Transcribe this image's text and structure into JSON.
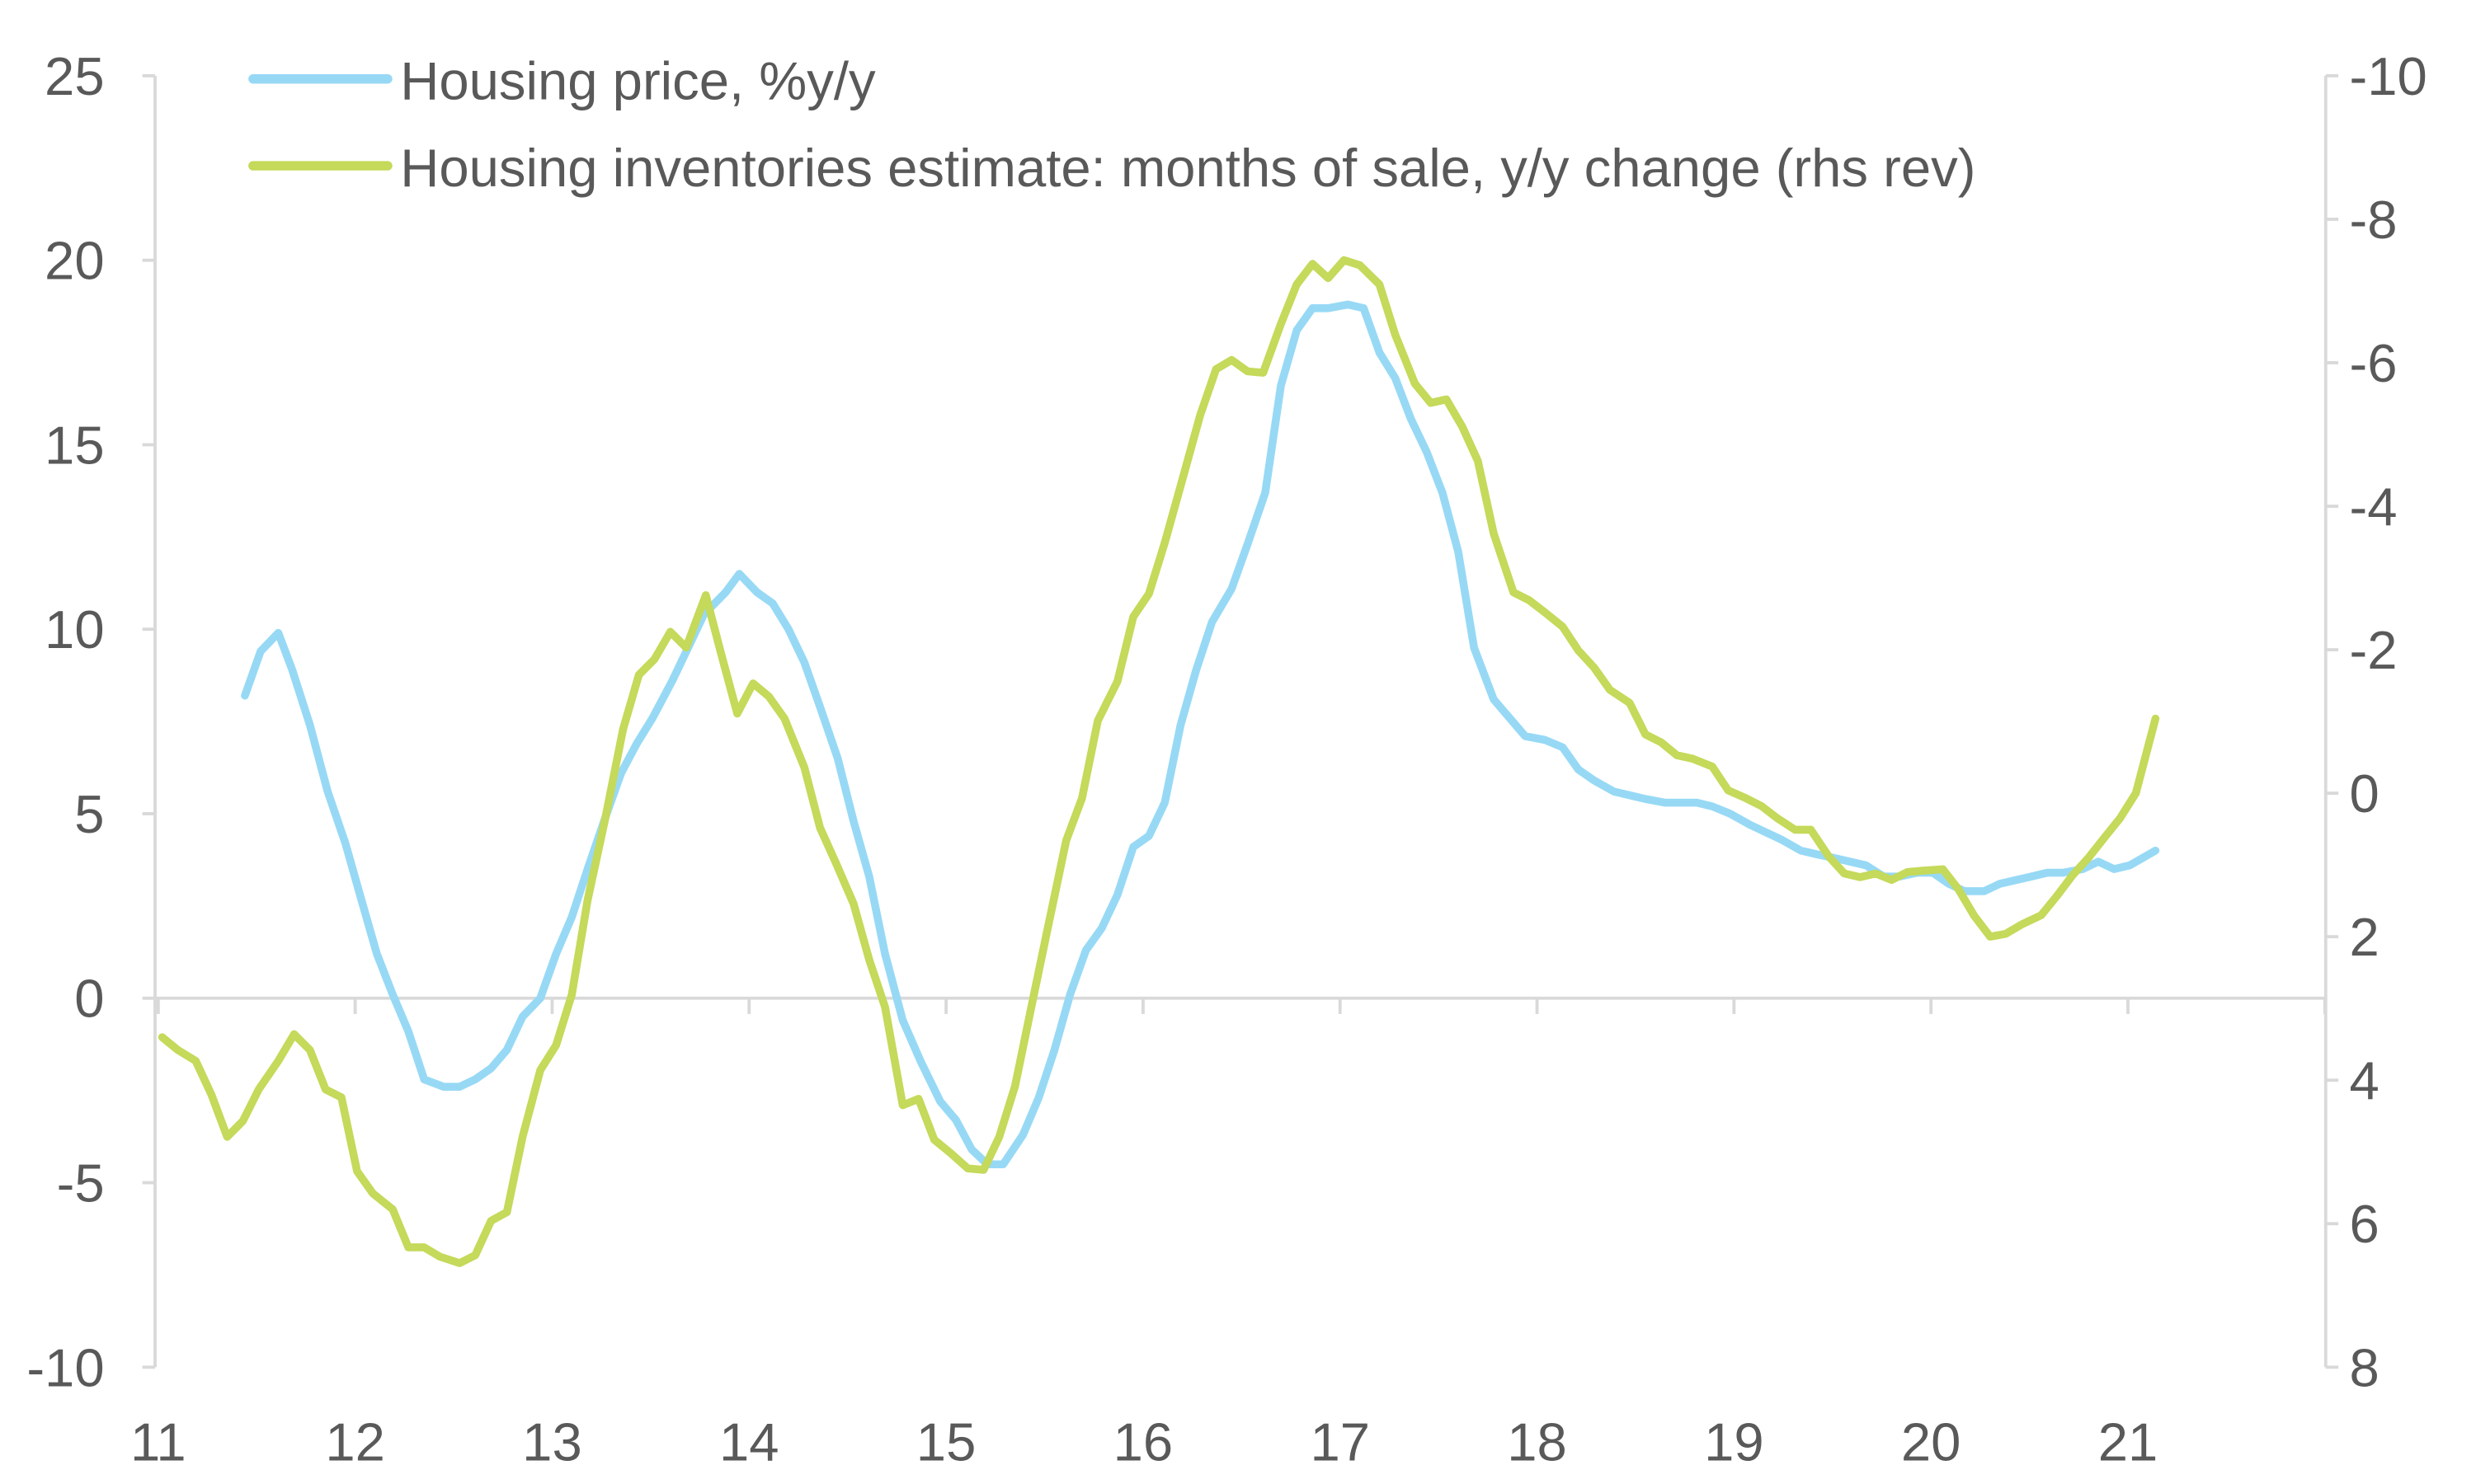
{
  "chart_data": {
    "type": "line",
    "title": "",
    "xlabel": "",
    "ylabel": "",
    "y2label": "",
    "xlim": [
      11,
      22
    ],
    "ylim": [
      -10,
      25
    ],
    "y2lim": [
      -10,
      8
    ],
    "y2_reversed": true,
    "grid": false,
    "legend_position": "top-left",
    "x_ticks": [
      "11",
      "12",
      "13",
      "14",
      "15",
      "16",
      "17",
      "18",
      "19",
      "20",
      "21"
    ],
    "y_ticks": [
      "25",
      "20",
      "15",
      "10",
      "5",
      "0",
      "-5",
      "-10"
    ],
    "y2_ticks": [
      "-10",
      "-8",
      "-6",
      "-4",
      "-2",
      "0",
      "2",
      "4",
      "6",
      "8"
    ],
    "series": [
      {
        "name": "Housing price, %y/y",
        "axis": "left",
        "color": "#97d9f5",
        "x": [
          11.44,
          11.52,
          11.61,
          11.68,
          11.77,
          11.86,
          11.95,
          12.03,
          12.11,
          12.19,
          12.27,
          12.35,
          12.45,
          12.53,
          12.61,
          12.69,
          12.77,
          12.85,
          12.94,
          13.02,
          13.1,
          13.18,
          13.27,
          13.35,
          13.43,
          13.51,
          13.61,
          13.69,
          13.77,
          13.88,
          13.95,
          14.04,
          14.12,
          14.2,
          14.28,
          14.36,
          14.45,
          14.53,
          14.61,
          14.69,
          14.78,
          14.87,
          14.97,
          15.05,
          15.13,
          15.21,
          15.29,
          15.39,
          15.47,
          15.55,
          15.63,
          15.71,
          15.79,
          15.87,
          15.95,
          16.03,
          16.11,
          16.19,
          16.27,
          16.35,
          16.45,
          16.53,
          16.62,
          16.7,
          16.78,
          16.86,
          16.94,
          17.04,
          17.12,
          17.2,
          17.28,
          17.36,
          17.44,
          17.52,
          17.6,
          17.68,
          17.78,
          17.86,
          17.94,
          18.04,
          18.13,
          18.21,
          18.29,
          18.39,
          18.47,
          18.55,
          18.65,
          18.73,
          18.81,
          18.89,
          18.98,
          19.08,
          19.16,
          19.24,
          19.34,
          19.42,
          19.51,
          19.59,
          19.67,
          19.76,
          19.84,
          19.93,
          20.01,
          20.09,
          20.17,
          20.27,
          20.35,
          20.43,
          20.51,
          20.59,
          20.67,
          20.77,
          20.85,
          20.93,
          21.01,
          21.14
        ],
        "y": [
          8.2,
          9.4,
          9.9,
          8.9,
          7.4,
          5.6,
          4.2,
          2.7,
          1.2,
          0.1,
          -0.9,
          -2.2,
          -2.4,
          -2.4,
          -2.2,
          -1.9,
          -1.4,
          -0.5,
          0,
          1.2,
          2.2,
          3.5,
          4.9,
          6.1,
          6.9,
          7.6,
          8.6,
          9.5,
          10.4,
          11.0,
          11.5,
          11.0,
          10.7,
          10.0,
          9.1,
          7.9,
          6.5,
          4.8,
          3.3,
          1.2,
          -0.6,
          -1.7,
          -2.8,
          -3.3,
          -4.1,
          -4.5,
          -4.5,
          -3.7,
          -2.7,
          -1.4,
          0.1,
          1.3,
          1.9,
          2.8,
          4.1,
          4.4,
          5.3,
          7.4,
          8.9,
          10.2,
          11.1,
          12.3,
          13.7,
          16.6,
          18.1,
          18.7,
          18.7,
          18.8,
          18.7,
          17.5,
          16.8,
          15.7,
          14.8,
          13.7,
          12.1,
          9.5,
          8.1,
          7.6,
          7.1,
          7.0,
          6.8,
          6.2,
          5.9,
          5.6,
          5.5,
          5.4,
          5.3,
          5.3,
          5.3,
          5.2,
          5.0,
          4.7,
          4.5,
          4.3,
          4.0,
          3.9,
          3.8,
          3.7,
          3.6,
          3.3,
          3.3,
          3.4,
          3.4,
          3.1,
          2.9,
          2.9,
          3.1,
          3.2,
          3.3,
          3.4,
          3.4,
          3.5,
          3.7,
          3.5,
          3.6,
          4.0
        ]
      },
      {
        "name": "Housing inventories estimate: months of sale, y/y change (rhs rev)",
        "axis": "right",
        "color": "#c5d95a",
        "x": [
          11.02,
          11.1,
          11.19,
          11.27,
          11.35,
          11.43,
          11.51,
          11.61,
          11.69,
          11.77,
          11.85,
          11.93,
          12.01,
          12.09,
          12.19,
          12.27,
          12.35,
          12.43,
          12.53,
          12.61,
          12.69,
          12.77,
          12.85,
          12.94,
          13.02,
          13.1,
          13.18,
          13.27,
          13.36,
          13.44,
          13.52,
          13.6,
          13.68,
          13.78,
          13.86,
          13.94,
          14.02,
          14.1,
          14.18,
          14.28,
          14.36,
          14.44,
          14.53,
          14.61,
          14.69,
          14.78,
          14.86,
          14.94,
          15.02,
          15.11,
          15.19,
          15.27,
          15.35,
          15.43,
          15.51,
          15.61,
          15.69,
          15.77,
          15.87,
          15.95,
          16.03,
          16.11,
          16.19,
          16.29,
          16.37,
          16.45,
          16.53,
          16.61,
          16.7,
          16.78,
          16.86,
          16.94,
          17.02,
          17.1,
          17.2,
          17.28,
          17.38,
          17.46,
          17.54,
          17.62,
          17.7,
          17.78,
          17.88,
          17.96,
          18.04,
          18.13,
          18.21,
          18.29,
          18.37,
          18.47,
          18.55,
          18.63,
          18.71,
          18.79,
          18.89,
          18.97,
          19.06,
          19.14,
          19.22,
          19.31,
          19.39,
          19.48,
          19.56,
          19.64,
          19.72,
          19.8,
          19.88,
          19.96,
          20.06,
          20.14,
          20.22,
          20.3,
          20.38,
          20.46,
          20.56,
          20.64,
          20.72,
          20.8,
          20.88,
          20.96,
          21.04,
          21.14
        ],
        "y": [
          3.4,
          3.58,
          3.73,
          4.2,
          4.79,
          4.57,
          4.13,
          3.73,
          3.36,
          3.58,
          4.13,
          4.24,
          5.27,
          5.58,
          5.8,
          6.33,
          6.33,
          6.46,
          6.55,
          6.44,
          5.96,
          5.84,
          4.79,
          3.86,
          3.51,
          2.81,
          1.49,
          0.35,
          -0.89,
          -1.65,
          -1.87,
          -2.25,
          -2.03,
          -2.76,
          -1.92,
          -1.11,
          -1.53,
          -1.35,
          -1.04,
          -0.36,
          0.48,
          0.97,
          1.54,
          2.32,
          2.98,
          4.35,
          4.26,
          4.83,
          5.01,
          5.23,
          5.25,
          4.79,
          4.08,
          3.02,
          1.96,
          0.66,
          0.07,
          -1.01,
          -1.56,
          -2.46,
          -2.78,
          -3.49,
          -4.28,
          -5.27,
          -5.91,
          -6.04,
          -5.88,
          -5.86,
          -6.54,
          -7.09,
          -7.38,
          -7.18,
          -7.43,
          -7.36,
          -7.09,
          -6.39,
          -5.71,
          -5.44,
          -5.49,
          -5.11,
          -4.63,
          -3.62,
          -2.8,
          -2.69,
          -2.52,
          -2.32,
          -1.99,
          -1.75,
          -1.44,
          -1.26,
          -0.82,
          -0.71,
          -0.53,
          -0.48,
          -0.37,
          -0.04,
          0.07,
          0.18,
          0.35,
          0.51,
          0.51,
          0.88,
          1.12,
          1.17,
          1.12,
          1.21,
          1.1,
          1.08,
          1.06,
          1.34,
          1.71,
          2.0,
          1.96,
          1.83,
          1.7,
          1.43,
          1.14,
          0.9,
          0.62,
          0.35,
          0.0,
          -1.04
        ]
      }
    ]
  }
}
